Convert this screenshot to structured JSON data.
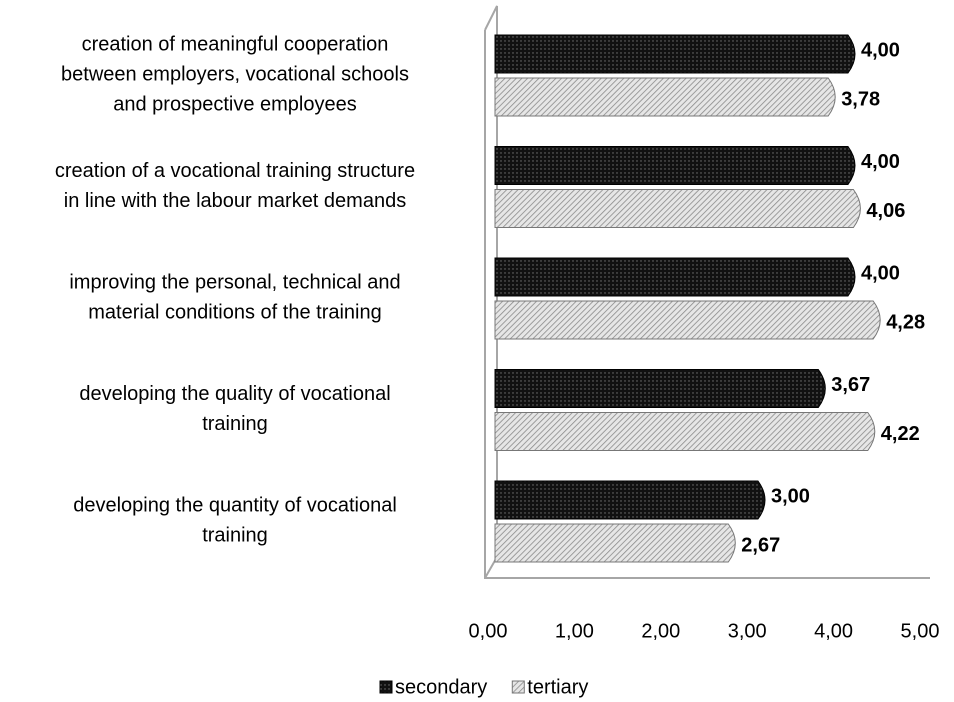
{
  "chart_data": {
    "type": "bar",
    "orientation": "horizontal",
    "categories": [
      "creation of meaningful cooperation\nbetween employers, vocational schools\nand prospective employees",
      "creation of a vocational training structure\nin line with the labour market demands",
      "improving the personal, technical and\nmaterial conditions of the training",
      "developing the quality of vocational\ntraining",
      "developing the quantity of vocational\ntraining"
    ],
    "series": [
      {
        "name": "secondary",
        "color": "#111111",
        "values": [
          4.0,
          4.0,
          4.0,
          3.67,
          3.0
        ],
        "value_labels": [
          "4,00",
          "4,00",
          "4,00",
          "3,67",
          "3,00"
        ]
      },
      {
        "name": "tertiary",
        "color": "#9a9a9a",
        "values": [
          3.78,
          4.06,
          4.28,
          4.22,
          2.67
        ],
        "value_labels": [
          "3,78",
          "4,06",
          "4,28",
          "4,22",
          "2,67"
        ]
      }
    ],
    "xlim": [
      0,
      5
    ],
    "xticks": [
      {
        "value": 0,
        "label": "0,00"
      },
      {
        "value": 1,
        "label": "1,00"
      },
      {
        "value": 2,
        "label": "2,00"
      },
      {
        "value": 3,
        "label": "3,00"
      },
      {
        "value": 4,
        "label": "4,00"
      },
      {
        "value": 5,
        "label": "5,00"
      }
    ],
    "legend": "bottom"
  }
}
